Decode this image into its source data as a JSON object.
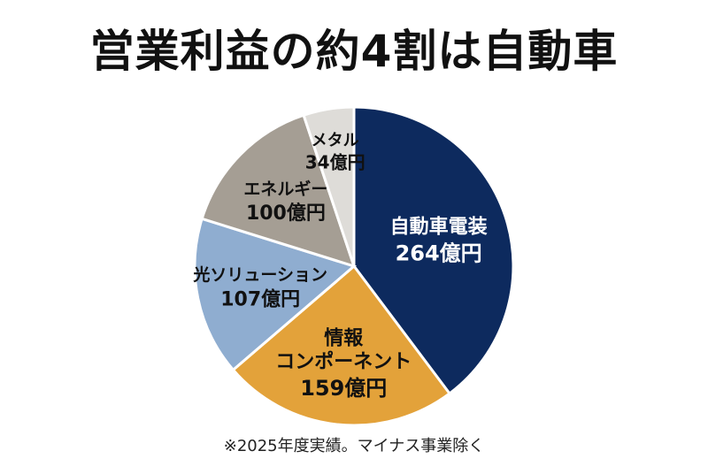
{
  "title": "営業利益の約4割は自動車",
  "note": "※2025年度実績。マイナス事業除く",
  "chart_data": {
    "type": "pie",
    "unit": "億円",
    "slices": [
      {
        "name": "自動車電装",
        "value": 264,
        "value_label": "264億円",
        "color": "#0d2a5e",
        "text_color": "#ffffff"
      },
      {
        "name": "情報コンポーネント",
        "name_lines": [
          "情報",
          "コンポーネント"
        ],
        "value": 159,
        "value_label": "159億円",
        "color": "#e3a23a",
        "text_color": "#111111"
      },
      {
        "name": "光ソリューション",
        "value": 107,
        "value_label": "107億円",
        "color": "#8fadd0",
        "text_color": "#111111"
      },
      {
        "name": "エネルギー",
        "value": 100,
        "value_label": "100億円",
        "color": "#a59e94",
        "text_color": "#111111"
      },
      {
        "name": "メタル",
        "value": 34,
        "value_label": "34億円",
        "color": "#dedcd8",
        "text_color": "#111111"
      }
    ]
  }
}
